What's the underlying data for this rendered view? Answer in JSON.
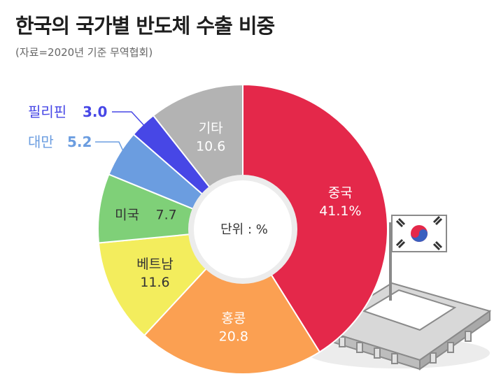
{
  "chart_data": {
    "type": "pie",
    "title": "한국의 국가별 반도체 수출 비중",
    "subtitle": "(자료=2020년 기준 무역협회)",
    "center_label": "단위 : %",
    "slices": [
      {
        "label": "중국",
        "value": 41.1,
        "value_text": "41.1%",
        "color": "#e4284a"
      },
      {
        "label": "홍콩",
        "value": 20.8,
        "value_text": "20.8",
        "color": "#fba052"
      },
      {
        "label": "베트남",
        "value": 11.6,
        "value_text": "11.6",
        "color": "#f3ed5d"
      },
      {
        "label": "미국",
        "value": 7.7,
        "value_text": "7.7",
        "color": "#7fd078"
      },
      {
        "label": "대만",
        "value": 5.2,
        "value_text": "5.2",
        "color": "#6b9de0"
      },
      {
        "label": "필리핀",
        "value": 3.0,
        "value_text": "3.0",
        "color": "#4747e6"
      },
      {
        "label": "기타",
        "value": 10.6,
        "value_text": "10.6",
        "color": "#b3b3b3"
      }
    ]
  }
}
